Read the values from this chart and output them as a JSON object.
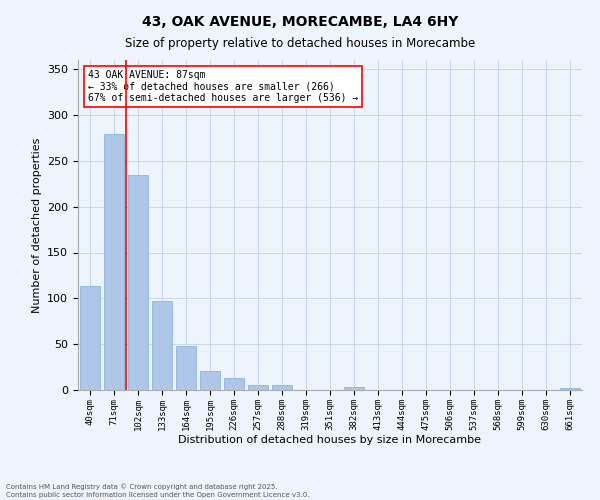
{
  "title": "43, OAK AVENUE, MORECAMBE, LA4 6HY",
  "subtitle": "Size of property relative to detached houses in Morecambe",
  "xlabel": "Distribution of detached houses by size in Morecambe",
  "ylabel": "Number of detached properties",
  "categories": [
    "40sqm",
    "71sqm",
    "102sqm",
    "133sqm",
    "164sqm",
    "195sqm",
    "226sqm",
    "257sqm",
    "288sqm",
    "319sqm",
    "351sqm",
    "382sqm",
    "413sqm",
    "444sqm",
    "475sqm",
    "506sqm",
    "537sqm",
    "568sqm",
    "599sqm",
    "630sqm",
    "661sqm"
  ],
  "values": [
    113,
    279,
    234,
    97,
    48,
    21,
    13,
    5,
    5,
    0,
    0,
    3,
    0,
    0,
    0,
    0,
    0,
    0,
    0,
    0,
    2
  ],
  "bar_color": "#aec6e8",
  "bar_edge_color": "#7daed4",
  "grid_color": "#c8d8e8",
  "background_color": "#eef4fb",
  "red_line_x": 1.516,
  "annotation_text": "43 OAK AVENUE: 87sqm\n← 33% of detached houses are smaller (266)\n67% of semi-detached houses are larger (536) →",
  "ylim": [
    0,
    360
  ],
  "yticks": [
    0,
    50,
    100,
    150,
    200,
    250,
    300,
    350
  ],
  "footer_line1": "Contains HM Land Registry data © Crown copyright and database right 2025.",
  "footer_line2": "Contains public sector information licensed under the Open Government Licence v3.0."
}
